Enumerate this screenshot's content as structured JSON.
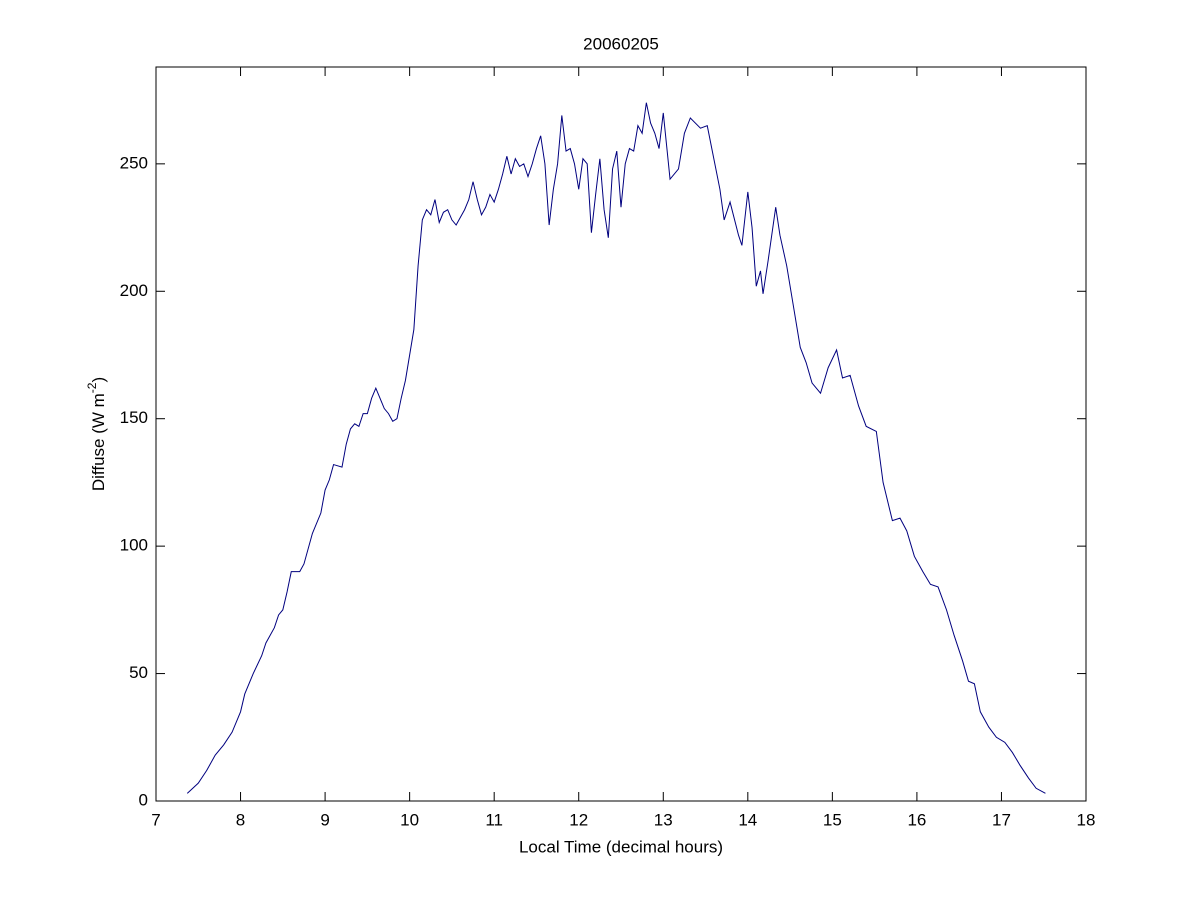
{
  "chart_data": {
    "type": "line",
    "title": "20060205",
    "xlabel": "Local Time (decimal hours)",
    "ylabel": {
      "text": "Diffuse (W m",
      "superscript": "-2",
      "suffix": ")"
    },
    "xlim": [
      7,
      18
    ],
    "xticks": [
      7,
      8,
      9,
      10,
      11,
      12,
      13,
      14,
      15,
      16,
      17,
      18
    ],
    "ylim": [
      0,
      288
    ],
    "yticks": [
      0,
      50,
      100,
      150,
      200,
      250
    ],
    "grid": false,
    "series": [
      {
        "color": "#00007f",
        "x": [
          7.37,
          7.5,
          7.6,
          7.7,
          7.8,
          7.9,
          8.0,
          8.05,
          8.15,
          8.25,
          8.3,
          8.4,
          8.45,
          8.5,
          8.55,
          8.6,
          8.7,
          8.75,
          8.85,
          8.95,
          9.0,
          9.05,
          9.1,
          9.2,
          9.25,
          9.3,
          9.35,
          9.4,
          9.45,
          9.5,
          9.55,
          9.6,
          9.65,
          9.7,
          9.75,
          9.8,
          9.85,
          9.9,
          9.95,
          10.0,
          10.05,
          10.1,
          10.15,
          10.2,
          10.25,
          10.3,
          10.35,
          10.4,
          10.45,
          10.5,
          10.55,
          10.6,
          10.65,
          10.7,
          10.75,
          10.8,
          10.85,
          10.9,
          10.95,
          11.0,
          11.05,
          11.1,
          11.15,
          11.2,
          11.25,
          11.3,
          11.35,
          11.4,
          11.45,
          11.5,
          11.55,
          11.6,
          11.65,
          11.7,
          11.75,
          11.8,
          11.85,
          11.9,
          11.95,
          12.0,
          12.05,
          12.1,
          12.15,
          12.2,
          12.25,
          12.3,
          12.35,
          12.4,
          12.45,
          12.5,
          12.55,
          12.6,
          12.65,
          12.7,
          12.75,
          12.8,
          12.85,
          12.9,
          12.95,
          13.0,
          13.08,
          13.18,
          13.25,
          13.32,
          13.44,
          13.52,
          13.58,
          13.67,
          13.72,
          13.79,
          13.89,
          13.93,
          14.0,
          14.05,
          14.1,
          14.15,
          14.18,
          14.24,
          14.33,
          14.38,
          14.46,
          14.53,
          14.62,
          14.69,
          14.76,
          14.86,
          14.95,
          15.05,
          15.12,
          15.21,
          15.31,
          15.4,
          15.52,
          15.6,
          15.71,
          15.8,
          15.88,
          15.97,
          16.07,
          16.16,
          16.25,
          16.35,
          16.44,
          16.54,
          16.61,
          16.68,
          16.75,
          16.85,
          16.94,
          17.04,
          17.13,
          17.22,
          17.32,
          17.41,
          17.52
        ],
        "values": [
          3,
          7,
          12,
          18,
          22,
          27,
          35,
          42,
          50,
          57,
          62,
          68,
          73,
          75,
          82,
          90,
          90,
          93,
          105,
          113,
          122,
          126,
          132,
          131,
          140,
          146,
          148,
          147,
          152,
          152,
          158,
          162,
          158,
          154,
          152,
          149,
          150,
          158,
          165,
          175,
          185,
          210,
          228,
          232,
          230,
          236,
          227,
          231,
          232,
          228,
          226,
          229,
          232,
          236,
          243,
          236,
          230,
          233,
          238,
          235,
          240,
          246,
          253,
          246,
          252,
          249,
          250,
          245,
          250,
          256,
          261,
          250,
          226,
          240,
          250,
          269,
          255,
          256,
          250,
          240,
          252,
          250,
          223,
          238,
          252,
          232,
          221,
          248,
          255,
          233,
          250,
          256,
          255,
          265,
          262,
          274,
          266,
          262,
          256,
          270,
          244,
          248,
          262,
          268,
          264,
          265,
          255,
          240,
          228,
          235,
          222,
          218,
          239,
          225,
          202,
          208,
          199,
          212,
          233,
          222,
          210,
          196,
          178,
          172,
          164,
          160,
          170,
          177,
          166,
          167,
          155,
          147,
          145,
          125,
          110,
          111,
          106,
          96,
          90,
          85,
          84,
          75,
          65,
          55,
          47,
          46,
          35,
          29,
          25,
          23,
          19,
          14,
          9,
          5,
          3
        ]
      }
    ]
  }
}
